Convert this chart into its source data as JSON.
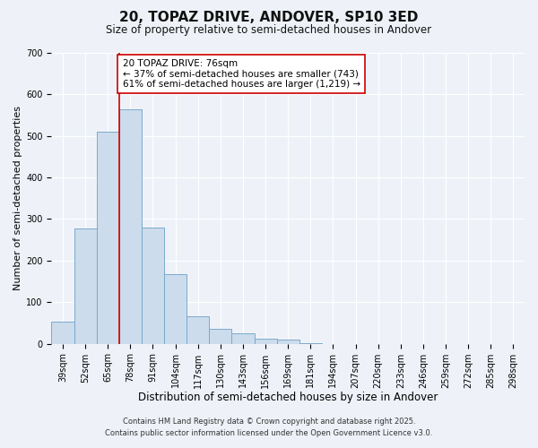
{
  "title": "20, TOPAZ DRIVE, ANDOVER, SP10 3ED",
  "subtitle": "Size of property relative to semi-detached houses in Andover",
  "xlabel": "Distribution of semi-detached houses by size in Andover",
  "ylabel": "Number of semi-detached properties",
  "categories": [
    "39sqm",
    "52sqm",
    "65sqm",
    "78sqm",
    "91sqm",
    "104sqm",
    "117sqm",
    "130sqm",
    "143sqm",
    "156sqm",
    "169sqm",
    "181sqm",
    "194sqm",
    "207sqm",
    "220sqm",
    "233sqm",
    "246sqm",
    "259sqm",
    "272sqm",
    "285sqm",
    "298sqm"
  ],
  "values": [
    52,
    278,
    510,
    565,
    280,
    168,
    65,
    35,
    25,
    13,
    10,
    2,
    0,
    0,
    0,
    0,
    0,
    0,
    0,
    0,
    0
  ],
  "bar_color": "#ccdcec",
  "bar_edge_color": "#7aaacb",
  "vline_color": "#cc0000",
  "annotation_text": "20 TOPAZ DRIVE: 76sqm\n← 37% of semi-detached houses are smaller (743)\n61% of semi-detached houses are larger (1,219) →",
  "annotation_box_color": "#ffffff",
  "annotation_box_edge_color": "#cc0000",
  "ylim": [
    0,
    700
  ],
  "yticks": [
    0,
    100,
    200,
    300,
    400,
    500,
    600,
    700
  ],
  "background_color": "#eef2f8",
  "grid_color": "#ffffff",
  "footer_line1": "Contains HM Land Registry data © Crown copyright and database right 2025.",
  "footer_line2": "Contains public sector information licensed under the Open Government Licence v3.0.",
  "title_fontsize": 11,
  "subtitle_fontsize": 8.5,
  "xlabel_fontsize": 8.5,
  "ylabel_fontsize": 8,
  "tick_fontsize": 7,
  "annotation_fontsize": 7.5,
  "footer_fontsize": 6
}
